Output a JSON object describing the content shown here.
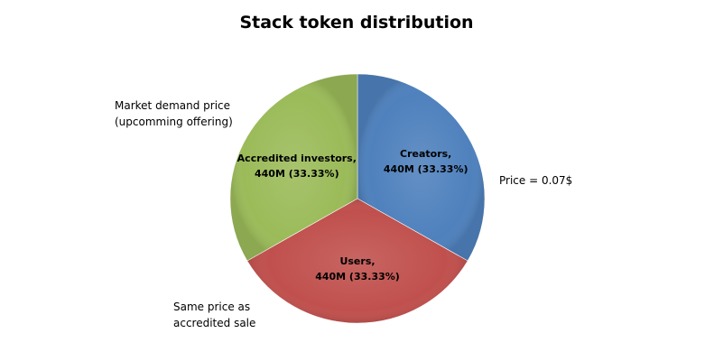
{
  "chart_data": {
    "type": "pie",
    "title": "Stack token distribution",
    "slices": [
      {
        "category": "Creators",
        "value": 440,
        "percent": 33.33,
        "label_lines": [
          "Creators,",
          "440M (33.33%)"
        ],
        "color": "#4F81BD",
        "note_lines": [
          "Price = 0.07$"
        ]
      },
      {
        "category": "Users",
        "value": 440,
        "percent": 33.33,
        "label_lines": [
          "Users,",
          "440M (33.33%)"
        ],
        "color": "#C0504D",
        "note_lines": [
          "Same price as",
          "accredited sale"
        ]
      },
      {
        "category": "Accredited investors",
        "value": 440,
        "percent": 33.33,
        "label_lines": [
          "Accredited investors,",
          "440M (33.33%)"
        ],
        "color": "#9BBB59",
        "note_lines": [
          "Market demand price",
          "(upcomming offering)"
        ]
      }
    ],
    "legend": false
  }
}
